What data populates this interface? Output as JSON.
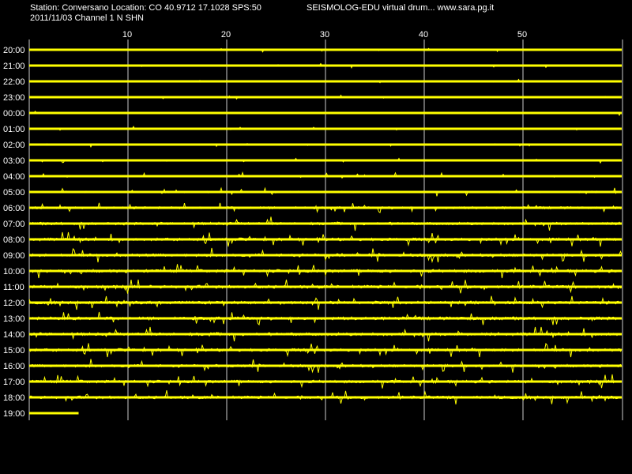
{
  "header": {
    "station": "Station: Conversano Location: CO 40.9712 17.1028 SPS:50",
    "date_channel": "2011/11/03  Channel 1 N SHN",
    "title": "SEISMOLOG-EDU virtual drum... www.sara.pg.it"
  },
  "colors": {
    "background": "#000000",
    "trace": "#ffff00",
    "grid": "#ffffff",
    "text": "#ffffff"
  },
  "chart_data": {
    "type": "line",
    "title": "SEISMOLOG-EDU virtual drum... www.sara.pg.it",
    "xlabel": "",
    "ylabel": "",
    "x_ticks": [
      10,
      20,
      30,
      40,
      50
    ],
    "xlim": [
      0,
      60
    ],
    "grid": "vertical",
    "rows": [
      {
        "hour": "20:00",
        "noise": 0.5,
        "end_minute": 60
      },
      {
        "hour": "21:00",
        "noise": 0.5,
        "end_minute": 60
      },
      {
        "hour": "22:00",
        "noise": 0.55,
        "end_minute": 60
      },
      {
        "hour": "23:00",
        "noise": 0.5,
        "end_minute": 60
      },
      {
        "hour": "00:00",
        "noise": 0.5,
        "end_minute": 60
      },
      {
        "hour": "01:00",
        "noise": 0.45,
        "end_minute": 60
      },
      {
        "hour": "02:00",
        "noise": 0.5,
        "end_minute": 60
      },
      {
        "hour": "03:00",
        "noise": 0.6,
        "end_minute": 60
      },
      {
        "hour": "04:00",
        "noise": 0.75,
        "end_minute": 60
      },
      {
        "hour": "05:00",
        "noise": 1.0,
        "end_minute": 60
      },
      {
        "hour": "06:00",
        "noise": 1.3,
        "end_minute": 60
      },
      {
        "hour": "07:00",
        "noise": 1.5,
        "end_minute": 60
      },
      {
        "hour": "08:00",
        "noise": 1.6,
        "end_minute": 60
      },
      {
        "hour": "09:00",
        "noise": 1.6,
        "end_minute": 60
      },
      {
        "hour": "10:00",
        "noise": 1.7,
        "end_minute": 60
      },
      {
        "hour": "11:00",
        "noise": 1.7,
        "end_minute": 60
      },
      {
        "hour": "12:00",
        "noise": 1.7,
        "end_minute": 60
      },
      {
        "hour": "13:00",
        "noise": 1.7,
        "end_minute": 60
      },
      {
        "hour": "14:00",
        "noise": 1.7,
        "end_minute": 60
      },
      {
        "hour": "15:00",
        "noise": 1.6,
        "end_minute": 60
      },
      {
        "hour": "16:00",
        "noise": 1.5,
        "end_minute": 60
      },
      {
        "hour": "17:00",
        "noise": 1.6,
        "end_minute": 60
      },
      {
        "hour": "18:00",
        "noise": 1.6,
        "end_minute": 60
      },
      {
        "hour": "19:00",
        "noise": 0.6,
        "end_minute": 5
      }
    ]
  }
}
